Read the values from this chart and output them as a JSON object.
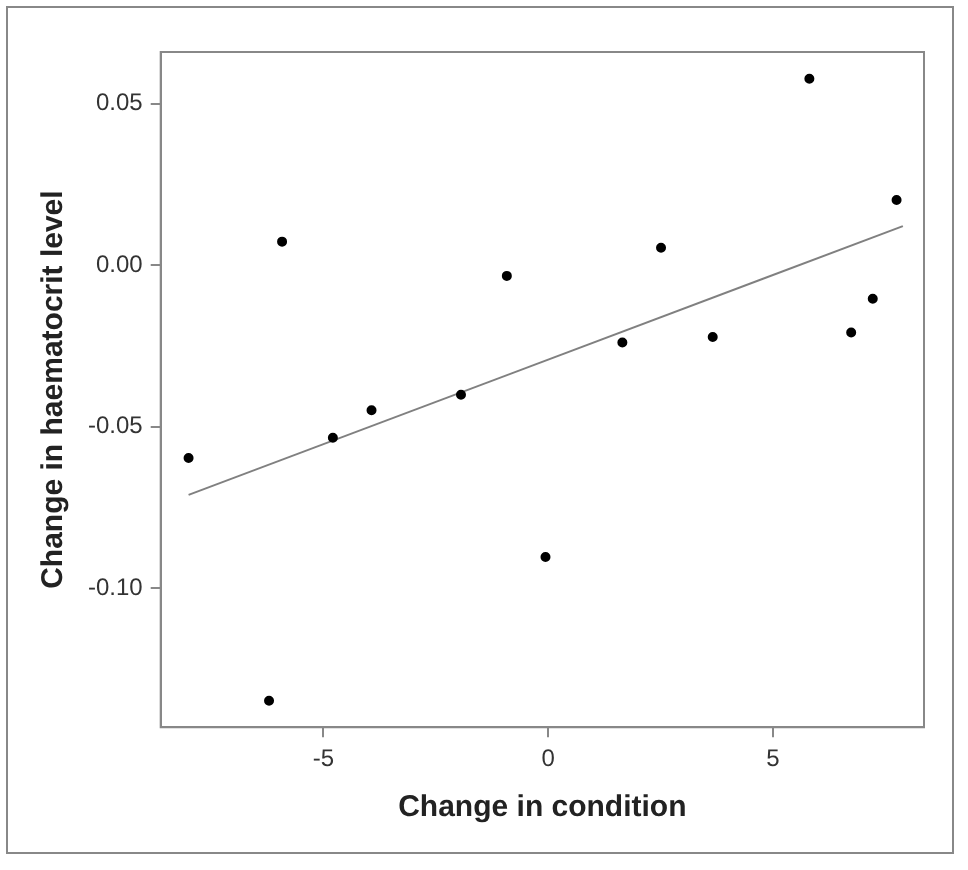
{
  "chart_data": {
    "type": "scatter",
    "xlabel": "Change in condition",
    "ylabel": "Change in haematocrit level",
    "xlim": [
      -8.62,
      8.36
    ],
    "ylim": [
      -0.143,
      0.066
    ],
    "xticks": [
      -5,
      0,
      5
    ],
    "yticks": [
      0.05,
      {
        "value": 0,
        "label": "0.00"
      },
      -0.05,
      {
        "value": -0.1,
        "label": "-0.10"
      }
    ],
    "grid": false,
    "legend": false,
    "marker": "circle",
    "series": [
      {
        "color": "#000000",
        "x": [
          -8.0,
          -6.21,
          -5.92,
          -4.79,
          -3.93,
          -1.94,
          -0.92,
          -0.06,
          1.65,
          2.51,
          3.66,
          5.81,
          6.74,
          7.22,
          7.75
        ],
        "values": [
          -0.0597,
          -0.1348,
          0.0073,
          -0.0534,
          -0.0449,
          -0.0401,
          -0.0033,
          -0.0903,
          -0.0239,
          0.0054,
          -0.0222,
          0.0577,
          -0.0208,
          -0.0104,
          0.0202
        ]
      },
      {
        "type": "line",
        "color": "#808080",
        "line_style": "solid",
        "marker": "none",
        "x": [
          -8.0,
          7.89
        ],
        "values": [
          -0.0711,
          0.0121
        ]
      }
    ]
  }
}
